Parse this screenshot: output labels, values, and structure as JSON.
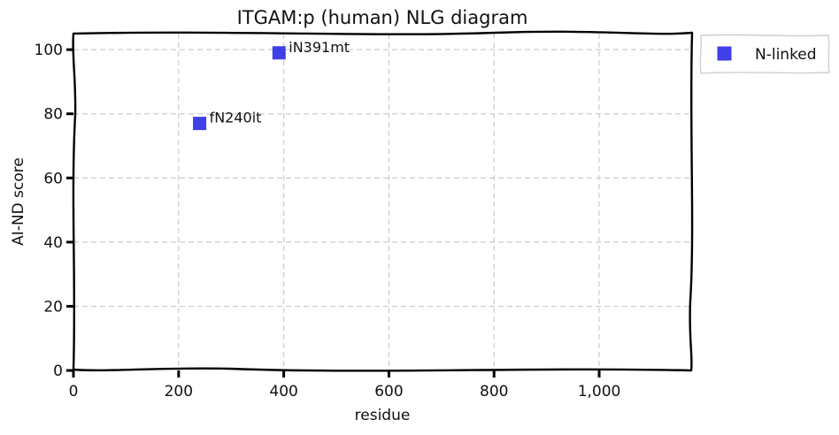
{
  "chart_data": {
    "type": "scatter",
    "title": "ITGAM:p (human) NLG diagram",
    "xlabel": "residue",
    "ylabel": "AI-ND score",
    "xlim": [
      0,
      1175
    ],
    "ylim": [
      0,
      105
    ],
    "xticks": [
      0,
      200,
      400,
      600,
      800,
      1000
    ],
    "xtick_labels": [
      "0",
      "200",
      "400",
      "600",
      "800",
      "1,000"
    ],
    "yticks": [
      0,
      20,
      40,
      60,
      80,
      100
    ],
    "ytick_labels": [
      "0",
      "20",
      "40",
      "60",
      "80",
      "100"
    ],
    "grid": true,
    "legend_position": "outside-top-right",
    "series": [
      {
        "name": "N-linked",
        "marker": "square",
        "color": "#1f1fe6",
        "points": [
          {
            "x": 240,
            "y": 77,
            "label": "fN240it"
          },
          {
            "x": 391,
            "y": 99,
            "label": "iN391mt"
          }
        ]
      }
    ]
  }
}
